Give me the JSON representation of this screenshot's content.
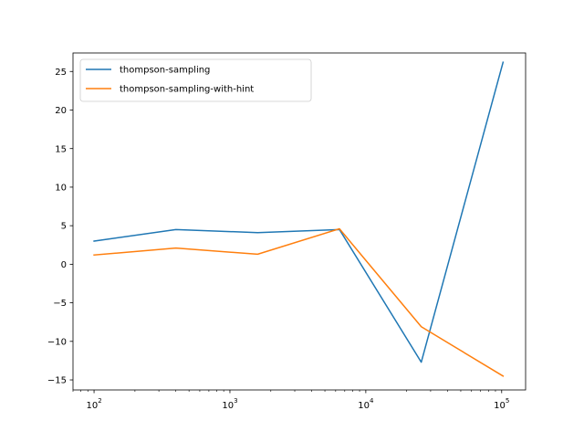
{
  "chart_data": {
    "type": "line",
    "title": "",
    "xlabel": "",
    "ylabel": "",
    "x_scale": "log",
    "xlim": [
      70,
      150000
    ],
    "ylim": [
      -16.3,
      27.4
    ],
    "grid": false,
    "legend_position": "upper-left",
    "x_ticks": [
      100,
      1000,
      10000,
      100000
    ],
    "x_tick_labels": [
      {
        "base": "10",
        "exp": "2"
      },
      {
        "base": "10",
        "exp": "3"
      },
      {
        "base": "10",
        "exp": "4"
      },
      {
        "base": "10",
        "exp": "5"
      }
    ],
    "y_ticks": [
      -15,
      -10,
      -5,
      0,
      5,
      10,
      15,
      20,
      25
    ],
    "y_tick_labels": [
      "−15",
      "−10",
      "−5",
      "0",
      "5",
      "10",
      "15",
      "20",
      "25"
    ],
    "x": [
      100,
      400,
      1600,
      6400,
      25600,
      102400
    ],
    "series": [
      {
        "name": "thompson-sampling",
        "color": "#1f77b4",
        "values": [
          3.0,
          4.5,
          4.1,
          4.5,
          -12.7,
          26.2
        ]
      },
      {
        "name": "thompson-sampling-with-hint",
        "color": "#ff7f0e",
        "values": [
          1.2,
          2.1,
          1.3,
          4.6,
          -8.1,
          -14.5
        ]
      }
    ]
  }
}
